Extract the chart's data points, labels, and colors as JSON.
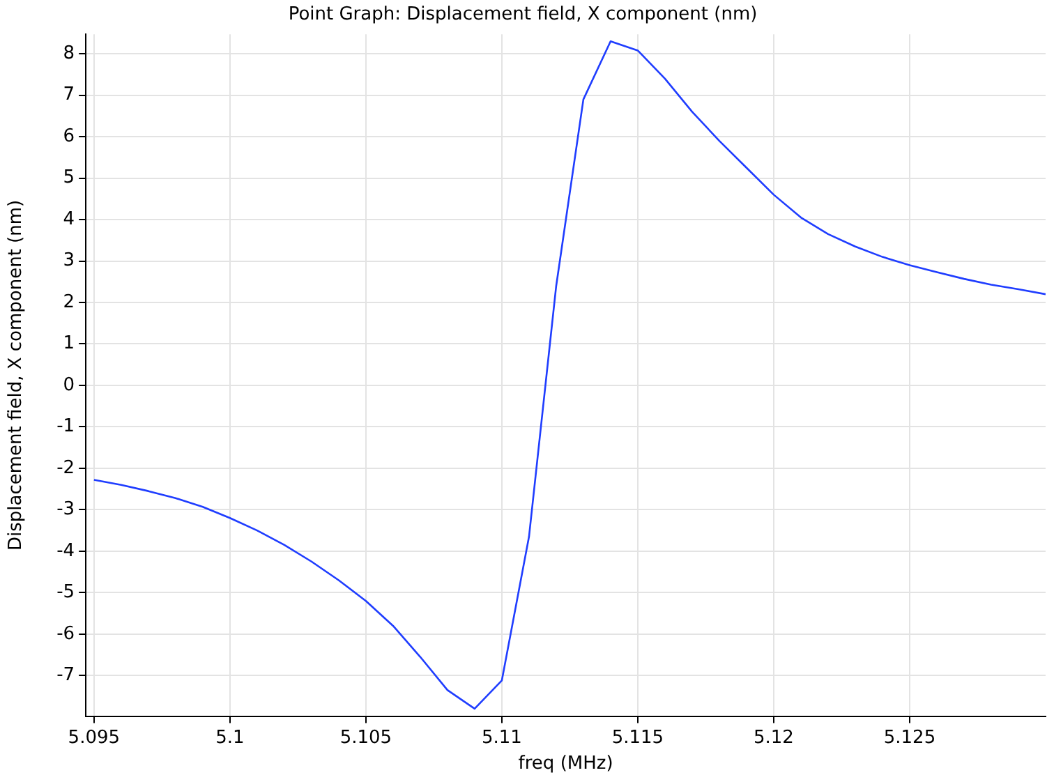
{
  "chart_data": {
    "type": "line",
    "title": "Point Graph: Displacement field, X component (nm)",
    "xlabel": "freq (MHz)",
    "ylabel": "Displacement field, X component (nm)",
    "x": [
      5.095,
      5.096,
      5.097,
      5.098,
      5.099,
      5.1,
      5.101,
      5.102,
      5.103,
      5.104,
      5.105,
      5.106,
      5.107,
      5.108,
      5.109,
      5.11,
      5.111,
      5.112,
      5.113,
      5.114,
      5.115,
      5.116,
      5.117,
      5.118,
      5.119,
      5.12,
      5.121,
      5.122,
      5.123,
      5.124,
      5.125,
      5.126,
      5.127,
      5.128,
      5.129,
      5.13
    ],
    "series": [
      {
        "color": "#1f3dff",
        "values": [
          -2.28,
          -2.4,
          -2.55,
          -2.72,
          -2.93,
          -3.2,
          -3.5,
          -3.85,
          -4.25,
          -4.7,
          -5.2,
          -5.8,
          -6.55,
          -7.35,
          -7.8,
          -7.12,
          -3.65,
          2.4,
          6.9,
          8.3,
          8.08,
          7.4,
          6.6,
          5.9,
          5.25,
          4.6,
          4.05,
          3.65,
          3.35,
          3.1,
          2.9,
          2.73,
          2.57,
          2.43,
          2.32,
          2.2
        ]
      }
    ],
    "xlim": [
      5.0947,
      5.13
    ],
    "xticks": [
      5.095,
      5.1,
      5.105,
      5.11,
      5.115,
      5.12,
      5.125
    ],
    "ylim": [
      -7.98,
      8.47
    ],
    "yticks": [
      -7,
      -6,
      -5,
      -4,
      -3,
      -2,
      -1,
      0,
      1,
      2,
      3,
      4,
      5,
      6,
      7,
      8
    ],
    "grid": true,
    "legend": false,
    "marker": "none",
    "line_style": "solid"
  }
}
